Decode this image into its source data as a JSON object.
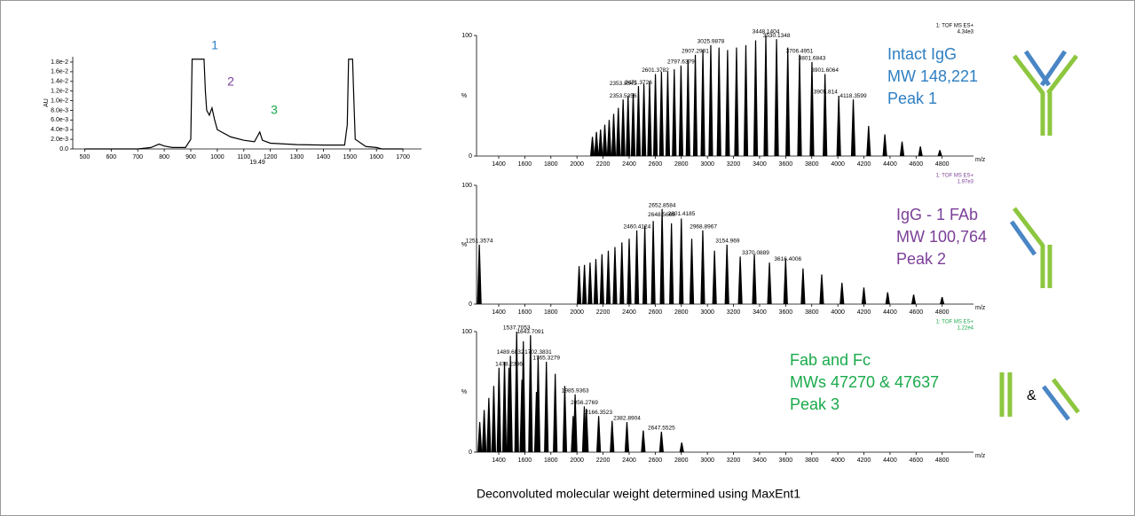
{
  "figure": {
    "caption": "Deconvoluted molecular weight determined using MaxEnt1",
    "icon_text": "&"
  },
  "chart_data": [
    {
      "type": "line",
      "ylabel": "AU",
      "color": "#000000",
      "x": [
        500,
        700,
        750,
        780,
        800,
        830,
        880,
        900,
        905,
        910,
        950,
        955,
        960,
        970,
        980,
        990,
        1000,
        1050,
        1100,
        1140,
        1150,
        1160,
        1170,
        1200,
        1300,
        1400,
        1480,
        1490,
        1495,
        1510,
        1515,
        1520,
        1560,
        1600,
        1620,
        1700
      ],
      "values": [
        0,
        0,
        0.0003,
        0.001,
        0.0006,
        0.0003,
        0.0003,
        0.002,
        0.0186,
        0.0186,
        0.0186,
        0.012,
        0.008,
        0.007,
        0.0085,
        0.006,
        0.004,
        0.0025,
        0.0018,
        0.0015,
        0.0025,
        0.0035,
        0.0018,
        0.0012,
        0.0009,
        0.0008,
        0.0008,
        0.005,
        0.0186,
        0.0186,
        0.01,
        0.002,
        0.0005,
        0.0003,
        0,
        0
      ],
      "xlim": [
        455,
        1770
      ],
      "ylim": [
        0,
        0.0191
      ],
      "xticks": [
        500,
        600,
        700,
        800,
        900,
        1000,
        1100,
        1200,
        1300,
        1400,
        1500,
        1600,
        1700
      ],
      "yticks": [
        {
          "value": 0,
          "label": "0.0"
        },
        {
          "value": 0.002,
          "label": "2.0e-3"
        },
        {
          "value": 0.004,
          "label": "4.0e-3"
        },
        {
          "value": 0.006,
          "label": "6.0e-3"
        },
        {
          "value": 0.008,
          "label": "8.0e-3"
        },
        {
          "value": 0.01,
          "label": "1.0e-2"
        },
        {
          "value": 0.012,
          "label": "1.2e-2"
        },
        {
          "value": 0.014,
          "label": "1.4e-2"
        },
        {
          "value": 0.016,
          "label": "1.6e-2"
        },
        {
          "value": 0.018,
          "label": "1.8e-2"
        }
      ],
      "peak_labels": [
        "1",
        "2",
        "3"
      ],
      "peak_label_colors": [
        "#2e7fc2",
        "#7b3f98",
        "#1aaa4b"
      ],
      "marker_label": "19.49"
    },
    {
      "type": "spectrum",
      "ylabel": "%",
      "xlabel": "m/z",
      "header": "1: TOF MS ES+",
      "scale": "4.34e3",
      "header_color": "#000000",
      "color": "#000000",
      "x": [
        2118.4,
        2149.1,
        2180.7,
        2213.3,
        2246.8,
        2281.3,
        2317.0,
        2353.7,
        2391.7,
        2430.9,
        2471.4,
        2513.2,
        2556.5,
        2601.4,
        2647.8,
        2695.9,
        2745.8,
        2797.6,
        2851.4,
        2907.3,
        2965.4,
        3025.9,
        3088.9,
        3154.6,
        3223.2,
        3294.8,
        3369.7,
        3448.0,
        3530.1,
        3616.1,
        3706.5,
        3801.5,
        3901.6,
        4007.0,
        4118.3,
        4235.9,
        4360.4,
        4492.5,
        4632.9,
        4782.3
      ],
      "values": [
        16,
        20,
        22,
        26,
        30,
        35,
        40,
        47,
        50,
        52,
        58,
        60,
        62,
        68,
        70,
        70,
        72,
        75,
        80,
        84,
        88,
        92,
        90,
        88,
        90,
        92,
        96,
        100,
        97,
        90,
        84,
        78,
        68,
        50,
        47,
        25,
        18,
        12,
        8,
        5
      ],
      "xlim": [
        1230,
        5040
      ],
      "ylim": [
        0,
        100
      ],
      "xticks": [
        1400,
        1600,
        1800,
        2000,
        2200,
        2400,
        2600,
        2800,
        3000,
        3200,
        3400,
        3600,
        3800,
        4000,
        4200,
        4400,
        4600,
        4800
      ],
      "yticks": [
        0,
        100
      ],
      "peak_labels": [
        {
          "x": 2353.5356,
          "value": 47
        },
        {
          "x": 2353.8545,
          "value": 57
        },
        {
          "x": 2471.3726,
          "value": 58
        },
        {
          "x": 2601.3782,
          "value": 68
        },
        {
          "x": 2797.6379,
          "value": 75
        },
        {
          "x": 2907.2991,
          "value": 84
        },
        {
          "x": 3025.9878,
          "value": 92
        },
        {
          "x": 3448.1404,
          "value": 100
        },
        {
          "x": 3530.1348,
          "value": 97
        },
        {
          "x": 3706.4951,
          "value": 84
        },
        {
          "x": 3801.6843,
          "value": 78
        },
        {
          "x": 3901.6064,
          "value": 68
        },
        {
          "x": 3905.814,
          "value": 50
        },
        {
          "x": 4118.3599,
          "value": 47
        }
      ],
      "annotations": [
        "Intact IgG",
        "MW 148,221",
        "Peak 1"
      ],
      "annotation_color": "#2e7fc2"
    },
    {
      "type": "spectrum",
      "ylabel": "%",
      "xlabel": "m/z",
      "header": "1: TOF MS ES+",
      "scale": "1.97e3",
      "header_color": "#7b3f98",
      "color": "#000000",
      "x": [
        1251.4,
        2016.3,
        2057.4,
        2100.3,
        2144.9,
        2191.5,
        2240.2,
        2291.1,
        2344.3,
        2400.1,
        2458.7,
        2520.1,
        2584.7,
        2652.7,
        2724.4,
        2800.0,
        2880.0,
        2964.6,
        3054.5,
        3149.9,
        3251.5,
        3359.8,
        3475.6,
        3599.7,
        3733.0,
        3876.5,
        4031.6,
        4199.5,
        4382.0,
        4581.2,
        4799.3
      ],
      "values": [
        50,
        32,
        33,
        35,
        38,
        42,
        45,
        48,
        52,
        55,
        62,
        66,
        70,
        80,
        68,
        72,
        55,
        62,
        45,
        50,
        40,
        42,
        35,
        38,
        30,
        25,
        18,
        14,
        10,
        8,
        6
      ],
      "xlim": [
        1230,
        5040
      ],
      "ylim": [
        0,
        100
      ],
      "xticks": [
        1400,
        1600,
        1800,
        2000,
        2200,
        2400,
        2600,
        2800,
        3000,
        3200,
        3400,
        3600,
        3800,
        4000,
        4200,
        4400,
        4600,
        4800
      ],
      "yticks": [
        0,
        100
      ],
      "peak_labels": [
        {
          "x": 1251.3574,
          "value": 50
        },
        {
          "x": 2460.4124,
          "value": 62
        },
        {
          "x": 2648.5669,
          "value": 72
        },
        {
          "x": 2652.8584,
          "value": 80
        },
        {
          "x": 2801.4185,
          "value": 73
        },
        {
          "x": 2968.8967,
          "value": 62
        },
        {
          "x": 3154.969,
          "value": 50
        },
        {
          "x": 3370.0889,
          "value": 40
        },
        {
          "x": 3616.4006,
          "value": 35
        }
      ],
      "annotations": [
        "IgG - 1 FAb",
        "MW 100,764",
        "Peak 2"
      ],
      "annotation_color": "#7b3f98"
    },
    {
      "type": "spectrum",
      "ylabel": "%",
      "xlabel": "m/z",
      "header": "1: TOF MS ES+",
      "scale": "1.22e4",
      "header_color": "#1aaa4b",
      "color": "#000000",
      "x": [
        1254.6,
        1288.5,
        1324.3,
        1362.1,
        1402.1,
        1444.5,
        1478.2,
        1489.7,
        1537.7,
        1577.7,
        1588.9,
        1643.7,
        1689.2,
        1702.3,
        1765.3,
        1833.2,
        1906.5,
        1970.6,
        1985.9,
        2056.3,
        2072.2,
        2166.3,
        2269.4,
        2382.9,
        2508.2,
        2647.5,
        2803.2
      ],
      "values": [
        25,
        35,
        45,
        55,
        70,
        75,
        70,
        80,
        100,
        60,
        92,
        97,
        50,
        80,
        75,
        65,
        55,
        30,
        48,
        38,
        36,
        30,
        26,
        25,
        18,
        17,
        8
      ],
      "xlim": [
        1230,
        5040
      ],
      "ylim": [
        0,
        100
      ],
      "xticks": [
        1400,
        1600,
        1800,
        2000,
        2200,
        2400,
        2600,
        2800,
        3000,
        3200,
        3400,
        3600,
        3800,
        4000,
        4200,
        4400,
        4600,
        4800
      ],
      "yticks": [
        0,
        100
      ],
      "peak_labels": [
        {
          "x": 1478.2386,
          "value": 70
        },
        {
          "x": 1489.6832,
          "value": 80
        },
        {
          "x": 1537.7053,
          "value": 100
        },
        {
          "x": 1643.7091,
          "value": 97
        },
        {
          "x": 1702.3831,
          "value": 80
        },
        {
          "x": 1765.3279,
          "value": 75
        },
        {
          "x": 1985.9363,
          "value": 48
        },
        {
          "x": 2056.2769,
          "value": 38
        },
        {
          "x": 2166.3523,
          "value": 30
        },
        {
          "x": 2382.8904,
          "value": 25
        },
        {
          "x": 2647.5525,
          "value": 17
        }
      ],
      "annotations": [
        "Fab and Fc",
        "MWs 47270 & 47637",
        "Peak 3"
      ],
      "annotation_color": "#1aaa4b"
    }
  ]
}
